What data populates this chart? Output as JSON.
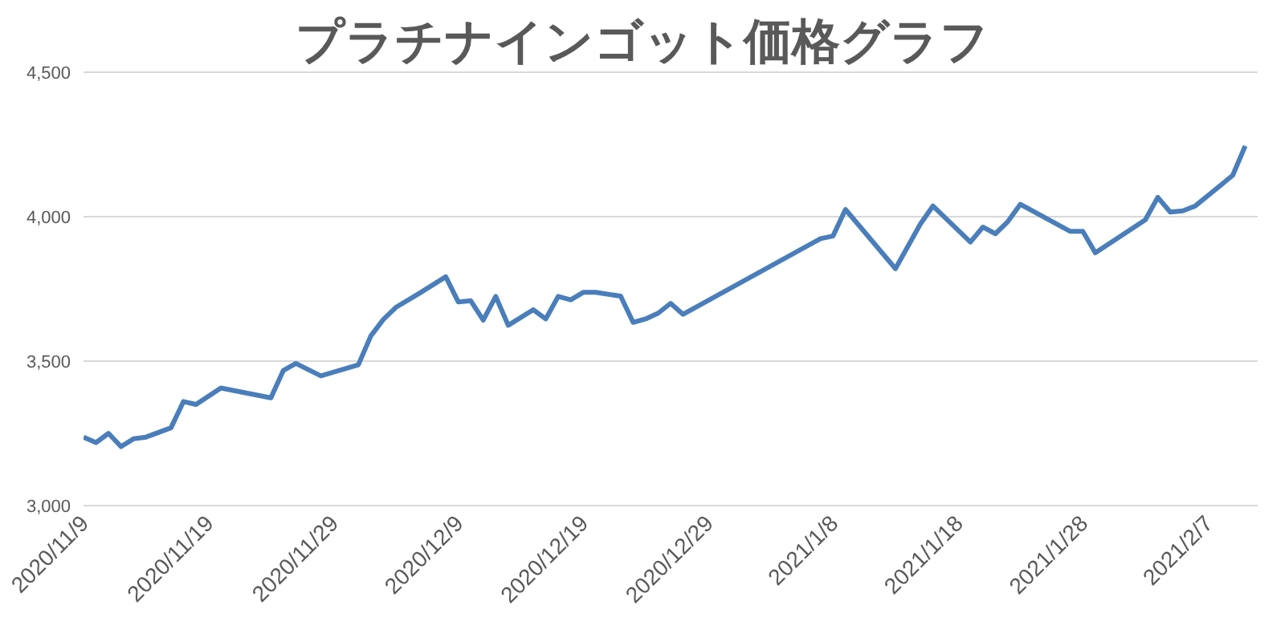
{
  "chart_data": {
    "type": "line",
    "title": "プラチナインゴット価格グラフ",
    "x": [
      "2020-11-09",
      "2020-11-10",
      "2020-11-11",
      "2020-11-12",
      "2020-11-13",
      "2020-11-14",
      "2020-11-16",
      "2020-11-17",
      "2020-11-18",
      "2020-11-20",
      "2020-11-24",
      "2020-11-25",
      "2020-11-26",
      "2020-11-28",
      "2020-12-01",
      "2020-12-02",
      "2020-12-03",
      "2020-12-04",
      "2020-12-06",
      "2020-12-08",
      "2020-12-09",
      "2020-12-10",
      "2020-12-11",
      "2020-12-12",
      "2020-12-13",
      "2020-12-15",
      "2020-12-16",
      "2020-12-17",
      "2020-12-18",
      "2020-12-19",
      "2020-12-20",
      "2020-12-22",
      "2020-12-23",
      "2020-12-24",
      "2020-12-25",
      "2020-12-26",
      "2020-12-27",
      "2021-01-07",
      "2021-01-08",
      "2021-01-09",
      "2021-01-13",
      "2021-01-15",
      "2021-01-16",
      "2021-01-19",
      "2021-01-20",
      "2021-01-21",
      "2021-01-22",
      "2021-01-23",
      "2021-01-27",
      "2021-01-28",
      "2021-01-29",
      "2021-02-02",
      "2021-02-03",
      "2021-02-04",
      "2021-02-05",
      "2021-02-06",
      "2021-02-09",
      "2021-02-10"
    ],
    "series": [
      {
        "color": "#4a7ebb",
        "values": [
          3237,
          3218,
          3250,
          3204,
          3231,
          3237,
          3269,
          3360,
          3350,
          3407,
          3373,
          3468,
          3492,
          3449,
          3487,
          3587,
          3644,
          3686,
          3738,
          3792,
          3705,
          3709,
          3642,
          3724,
          3624,
          3678,
          3646,
          3724,
          3712,
          3738,
          3738,
          3725,
          3634,
          3646,
          3666,
          3700,
          3662,
          3924,
          3933,
          4025,
          3820,
          3975,
          4037,
          3912,
          3964,
          3941,
          3983,
          4043,
          3949,
          3949,
          3875,
          3989,
          4067,
          4016,
          4020,
          4037,
          4143,
          4245
        ]
      }
    ],
    "xlim": [
      "2020-11-09",
      "2021-02-11"
    ],
    "xticks": [
      {
        "value": "2020-11-09",
        "label": "2020/11/9"
      },
      {
        "value": "2020-11-19",
        "label": "2020/11/19"
      },
      {
        "value": "2020-11-29",
        "label": "2020/11/29"
      },
      {
        "value": "2020-12-09",
        "label": "2020/12/9"
      },
      {
        "value": "2020-12-19",
        "label": "2020/12/19"
      },
      {
        "value": "2020-12-29",
        "label": "2020/12/29"
      },
      {
        "value": "2021-01-08",
        "label": "2021/1/8"
      },
      {
        "value": "2021-01-18",
        "label": "2021/1/18"
      },
      {
        "value": "2021-01-28",
        "label": "2021/1/28"
      },
      {
        "value": "2021-02-07",
        "label": "2021/2/7"
      }
    ],
    "ylim": [
      3000,
      4500
    ],
    "yticks": [
      {
        "value": 3000,
        "label": "3,000"
      },
      {
        "value": 3500,
        "label": "3,500"
      },
      {
        "value": 4000,
        "label": "4,000"
      },
      {
        "value": 4500,
        "label": "4,500"
      }
    ],
    "grid": "y",
    "legend": false,
    "marker": "none",
    "line_style": "solid"
  }
}
